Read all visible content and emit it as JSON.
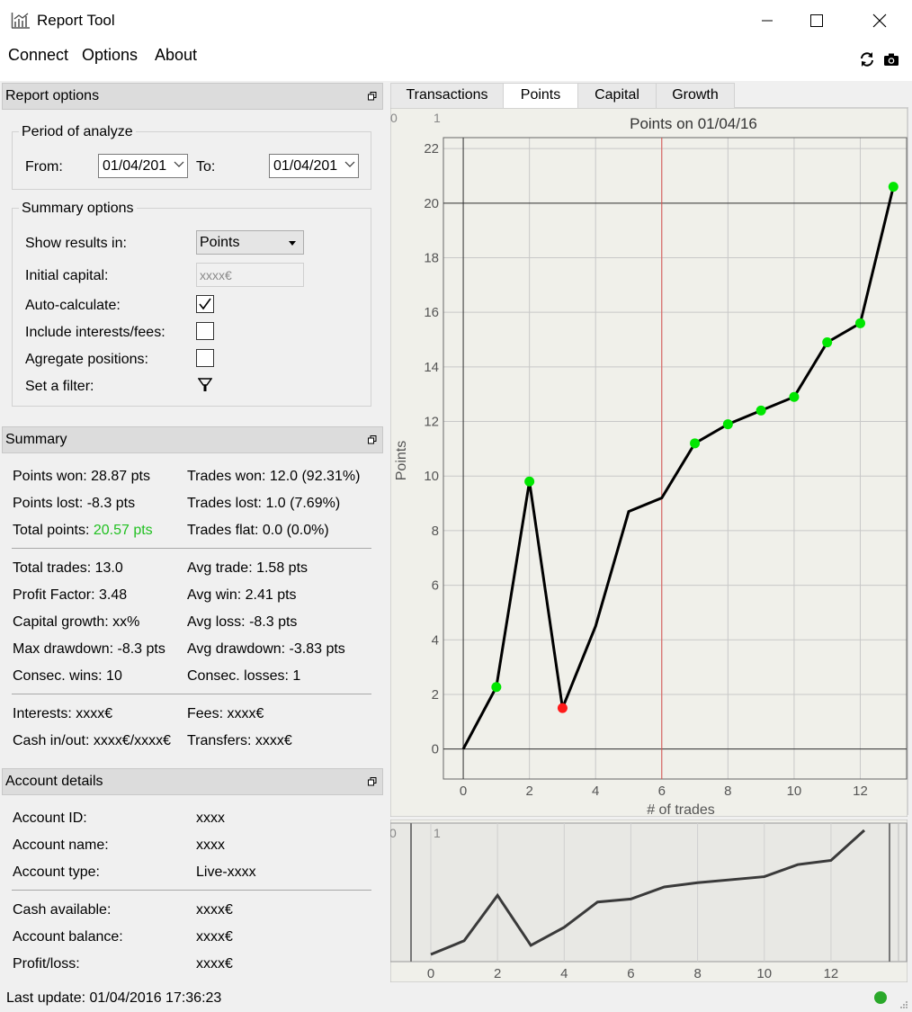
{
  "window": {
    "title": "Report Tool"
  },
  "menu": {
    "items": [
      "Connect",
      "Options",
      "About"
    ]
  },
  "report_options": {
    "header": "Report options",
    "period": {
      "title": "Period of analyze",
      "from_label": "From:",
      "from_value": "01/04/201",
      "to_label": "To:",
      "to_value": "01/04/201"
    },
    "summary_options": {
      "title": "Summary options",
      "show_results_label": "Show results in:",
      "show_results_value": "Points",
      "initial_capital_label": "Initial capital:",
      "initial_capital_placeholder": "xxxx€",
      "auto_calc_label": "Auto-calculate:",
      "auto_calc_checked": true,
      "include_fees_label": "Include interests/fees:",
      "include_fees_checked": false,
      "aggregate_label": "Agregate positions:",
      "aggregate_checked": false,
      "filter_label": "Set a filter:"
    }
  },
  "summary": {
    "header": "Summary",
    "points_won": "Points won: 28.87 pts",
    "trades_won": "Trades won: 12.0 (92.31%)",
    "points_lost": "Points lost: -8.3 pts",
    "trades_lost": "Trades lost: 1.0 (7.69%)",
    "total_points_label": "Total points: ",
    "total_points_value": "20.57 pts",
    "trades_flat": "Trades flat: 0.0 (0.0%)",
    "total_trades": "Total trades: 13.0",
    "avg_trade": "Avg trade: 1.58 pts",
    "profit_factor": "Profit Factor: 3.48",
    "avg_win": "Avg win: 2.41 pts",
    "capital_growth": "Capital growth: xx%",
    "avg_loss": "Avg loss: -8.3 pts",
    "max_drawdown": "Max drawdown: -8.3 pts",
    "avg_drawdown": "Avg drawdown: -3.83 pts",
    "consec_wins": "Consec. wins: 10",
    "consec_losses": "Consec. losses: 1",
    "interests": "Interests: xxxx€",
    "fees": "Fees: xxxx€",
    "cash_inout": "Cash in/out: xxxx€/xxxx€",
    "transfers": "Transfers: xxxx€"
  },
  "account": {
    "header": "Account details",
    "id_label": "Account ID:",
    "id_value": "xxxx",
    "name_label": "Account name:",
    "name_value": "xxxx",
    "type_label": "Account type:",
    "type_value": "Live-xxxx",
    "cash_label": "Cash available:",
    "cash_value": "xxxx€",
    "balance_label": "Account balance:",
    "balance_value": "xxxx€",
    "pl_label": "Profit/loss:",
    "pl_value": "xxxx€"
  },
  "tabs": [
    {
      "label": "Transactions",
      "active": false
    },
    {
      "label": "Points",
      "active": true
    },
    {
      "label": "Capital",
      "active": false
    },
    {
      "label": "Growth",
      "active": false
    }
  ],
  "chart_data": {
    "type": "line",
    "title": "Points on 01/04/16",
    "xlabel": "# of trades",
    "ylabel": "Points",
    "x": [
      0,
      1,
      2,
      3,
      4,
      5,
      6,
      7,
      8,
      9,
      10,
      11,
      12,
      13
    ],
    "values": [
      0,
      2.27,
      9.8,
      1.5,
      4.5,
      8.7,
      9.2,
      11.2,
      11.9,
      12.4,
      12.9,
      14.9,
      15.6,
      20.6
    ],
    "markers": [
      "none",
      "green",
      "green",
      "red",
      "none",
      "none",
      "none",
      "green",
      "green",
      "green",
      "green",
      "green",
      "green",
      "green"
    ],
    "xlim": [
      -0.6,
      13.4
    ],
    "ylim": [
      -1.1,
      22.4
    ],
    "xticks": [
      0,
      2,
      4,
      6,
      8,
      10,
      12
    ],
    "yticks": [
      0,
      2,
      4,
      6,
      8,
      10,
      12,
      14,
      16,
      18,
      20,
      22
    ],
    "hline": 20,
    "vline": 6,
    "grid": true,
    "colors": {
      "line": "#000000",
      "win": "#00e600",
      "loss": "#ff1a1a",
      "vline": "#d9534f",
      "plot_bg": "#f0f0ea"
    },
    "corner_labels": [
      "0",
      "1"
    ],
    "navigator": {
      "xticks": [
        0,
        2,
        4,
        6,
        8,
        10,
        12
      ],
      "corner_labels": [
        "0",
        "1"
      ]
    }
  },
  "status": {
    "text": "Last update: 01/04/2016 17:36:23",
    "connected_color": "#2aa82a"
  }
}
